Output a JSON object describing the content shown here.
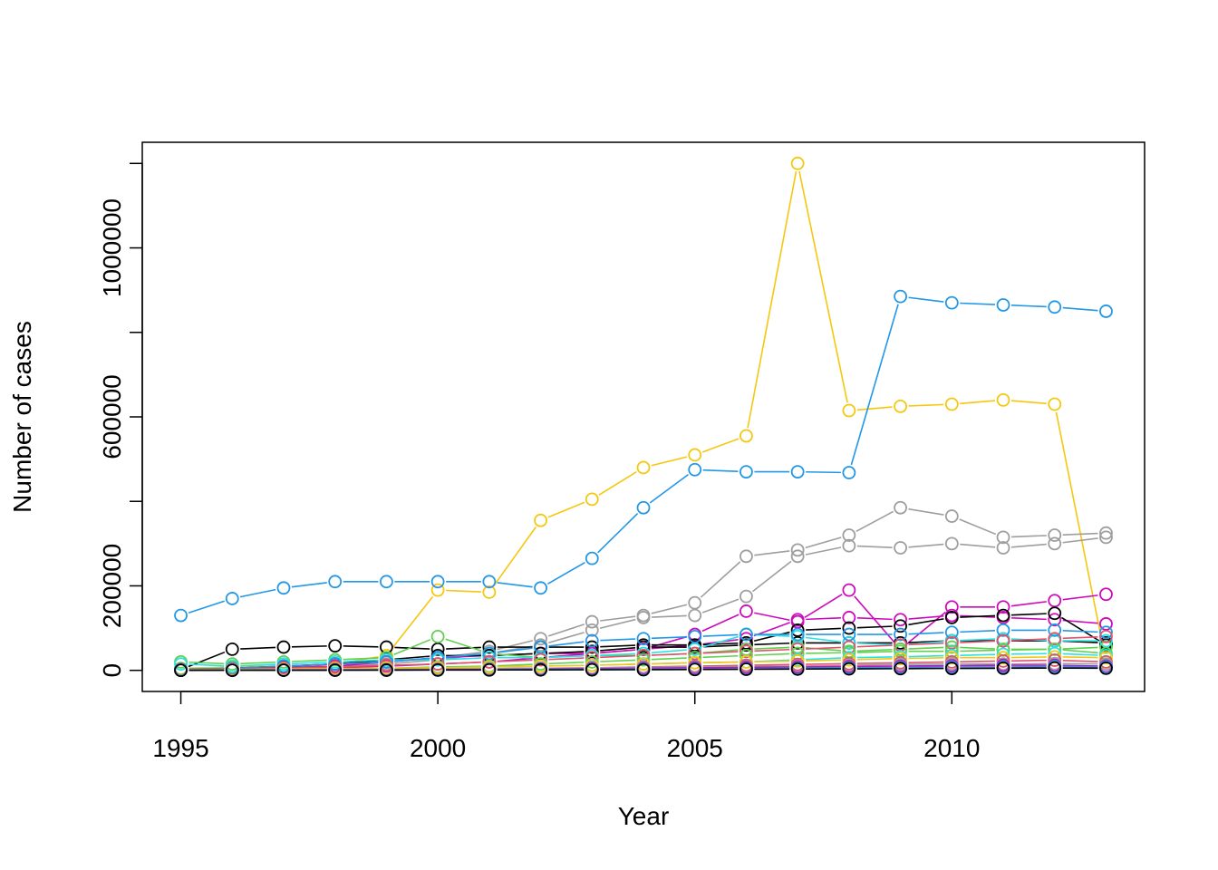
{
  "chart_data": {
    "type": "line",
    "xlabel": "Year",
    "ylabel": "Number of cases",
    "xlim": [
      1994.25,
      2013.75
    ],
    "ylim": [
      -50000,
      1250000
    ],
    "x_ticks": [
      "1995",
      "2000",
      "2005",
      "2010"
    ],
    "y_ticks": [
      "0",
      "200000",
      "600000",
      "1000000"
    ],
    "grid": false,
    "legend": "none",
    "x": [
      1995,
      1996,
      1997,
      1998,
      1999,
      2000,
      2001,
      2002,
      2003,
      2004,
      2005,
      2006,
      2007,
      2008,
      2009,
      2010,
      2011,
      2012,
      2013
    ],
    "series": [
      {
        "color": "#F5C710",
        "values": [
          5000,
          8000,
          10000,
          15000,
          35000,
          190000,
          185000,
          355000,
          405000,
          480000,
          510000,
          555000,
          1200000,
          615000,
          625000,
          630000,
          640000,
          630000,
          20000
        ]
      },
      {
        "color": "#2297E6",
        "values": [
          130000,
          170000,
          195000,
          210000,
          210000,
          210000,
          210000,
          195000,
          265000,
          385000,
          475000,
          470000,
          470000,
          468000,
          885000,
          870000,
          865000,
          860000,
          850000
        ]
      },
      {
        "color": "#9E9E9E",
        "values": [
          3000,
          5000,
          8000,
          10000,
          20000,
          30000,
          45000,
          75000,
          115000,
          130000,
          160000,
          270000,
          285000,
          320000,
          385000,
          365000,
          315000,
          320000,
          325000
        ]
      },
      {
        "color": "#9E9E9E",
        "values": [
          2000,
          4000,
          6000,
          9000,
          15000,
          25000,
          40000,
          60000,
          95000,
          125000,
          130000,
          175000,
          270000,
          295000,
          290000,
          300000,
          290000,
          300000,
          315000
        ]
      },
      {
        "color": "#CD0BBC",
        "values": [
          1000,
          3000,
          6000,
          10000,
          20000,
          30000,
          35000,
          40000,
          40000,
          50000,
          85000,
          140000,
          115000,
          190000,
          50000,
          150000,
          150000,
          165000,
          180000
        ]
      },
      {
        "color": "#CD0BBC",
        "values": [
          500,
          2000,
          4000,
          6000,
          10000,
          15000,
          20000,
          30000,
          40000,
          50000,
          60000,
          75000,
          120000,
          125000,
          120000,
          130000,
          125000,
          120000,
          110000
        ]
      },
      {
        "color": "#000000",
        "values": [
          2000,
          50000,
          55000,
          58000,
          55000,
          50000,
          55000,
          55000,
          55000,
          60000,
          60000,
          65000,
          95000,
          100000,
          105000,
          125000,
          130000,
          135000,
          60000
        ]
      },
      {
        "color": "#000000",
        "values": [
          1000,
          5000,
          10000,
          15000,
          25000,
          35000,
          35000,
          40000,
          45000,
          55000,
          55000,
          60000,
          65000,
          65000,
          65000,
          70000,
          70000,
          70000,
          65000
        ]
      },
      {
        "color": "#61D04F",
        "values": [
          20000,
          15000,
          20000,
          25000,
          30000,
          80000,
          40000,
          30000,
          35000,
          35000,
          40000,
          50000,
          55000,
          45000,
          50000,
          55000,
          50000,
          50000,
          55000
        ]
      },
      {
        "color": "#28E2E5",
        "values": [
          15000,
          10000,
          15000,
          20000,
          25000,
          25000,
          30000,
          30000,
          35000,
          40000,
          50000,
          85000,
          80000,
          65000,
          60000,
          70000,
          75000,
          70000,
          70000
        ]
      },
      {
        "color": "#2297E6",
        "values": [
          3000,
          5000,
          10000,
          15000,
          20000,
          30000,
          40000,
          55000,
          70000,
          75000,
          80000,
          85000,
          85000,
          85000,
          85000,
          90000,
          95000,
          95000,
          90000
        ]
      },
      {
        "color": "#DF536B",
        "values": [
          1000,
          3000,
          5000,
          8000,
          12000,
          15000,
          20000,
          25000,
          30000,
          35000,
          40000,
          45000,
          50000,
          55000,
          60000,
          65000,
          70000,
          75000,
          80000
        ]
      },
      {
        "color": "#61D04F",
        "values": [
          500,
          1000,
          2000,
          3000,
          5000,
          8000,
          10000,
          15000,
          20000,
          25000,
          30000,
          35000,
          40000,
          42000,
          45000,
          45000,
          48000,
          50000,
          40000
        ]
      },
      {
        "color": "#28E2E5",
        "values": [
          500,
          1000,
          1500,
          2000,
          3000,
          5000,
          8000,
          10000,
          12000,
          15000,
          18000,
          20000,
          25000,
          30000,
          32000,
          35000,
          38000,
          40000,
          35000
        ]
      },
      {
        "color": "#F5C710",
        "values": [
          1000,
          2000,
          3000,
          4000,
          5000,
          6000,
          8000,
          10000,
          12000,
          15000,
          18000,
          20000,
          22000,
          25000,
          28000,
          30000,
          30000,
          32000,
          30000
        ]
      },
      {
        "color": "#DF536B",
        "values": [
          200,
          500,
          1000,
          1500,
          2000,
          3000,
          4000,
          5000,
          6000,
          8000,
          10000,
          12000,
          14000,
          16000,
          18000,
          20000,
          22000,
          24000,
          20000
        ]
      },
      {
        "color": "#9E9E9E",
        "values": [
          500,
          1000,
          1500,
          2000,
          2500,
          3000,
          4000,
          5000,
          6000,
          7000,
          8000,
          9000,
          10000,
          12000,
          14000,
          15000,
          15000,
          16000,
          15000
        ]
      },
      {
        "color": "#CD0BBC",
        "values": [
          100,
          300,
          500,
          800,
          1000,
          1500,
          2000,
          3000,
          4000,
          5000,
          6000,
          7000,
          8000,
          9000,
          10000,
          11000,
          12000,
          12000,
          10000
        ]
      },
      {
        "color": "#2297E6",
        "values": [
          100,
          200,
          300,
          500,
          700,
          1000,
          1500,
          2000,
          2500,
          3000,
          3500,
          4000,
          5000,
          6000,
          7000,
          8000,
          8000,
          9000,
          8000
        ]
      },
      {
        "color": "#000000",
        "values": [
          100,
          200,
          300,
          400,
          500,
          700,
          900,
          1100,
          1300,
          1500,
          2000,
          2500,
          3000,
          3500,
          4000,
          4500,
          5000,
          5500,
          5000
        ]
      }
    ]
  }
}
